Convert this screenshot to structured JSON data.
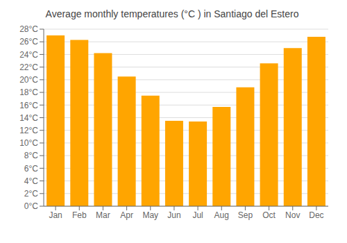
{
  "chart_data": {
    "type": "bar",
    "title": "Average monthly temperatures (°C ) in Santiago del Estero",
    "categories": [
      "Jan",
      "Feb",
      "Mar",
      "Apr",
      "May",
      "Jun",
      "Jul",
      "Aug",
      "Sep",
      "Oct",
      "Nov",
      "Dec"
    ],
    "values": [
      27.0,
      26.3,
      24.2,
      20.5,
      17.5,
      13.5,
      13.4,
      15.7,
      18.8,
      22.6,
      25.0,
      26.8
    ],
    "color": "#FFA500",
    "ylim": [
      0,
      28
    ],
    "yticks": [
      {
        "value": 0,
        "label": "0°C"
      },
      {
        "value": 2,
        "label": "2°C"
      },
      {
        "value": 4,
        "label": "4°C"
      },
      {
        "value": 6,
        "label": "6°C"
      },
      {
        "value": 8,
        "label": "8°C"
      },
      {
        "value": 10,
        "label": "10°C"
      },
      {
        "value": 12,
        "label": "12°C"
      },
      {
        "value": 14,
        "label": "14°C"
      },
      {
        "value": 16,
        "label": "16°C"
      },
      {
        "value": 18,
        "label": "18°C"
      },
      {
        "value": 20,
        "label": "20°C"
      },
      {
        "value": 22,
        "label": "22°C"
      },
      {
        "value": 24,
        "label": "24°C"
      },
      {
        "value": 26,
        "label": "26°C"
      },
      {
        "value": 28,
        "label": "28°C"
      }
    ],
    "grid": true
  }
}
